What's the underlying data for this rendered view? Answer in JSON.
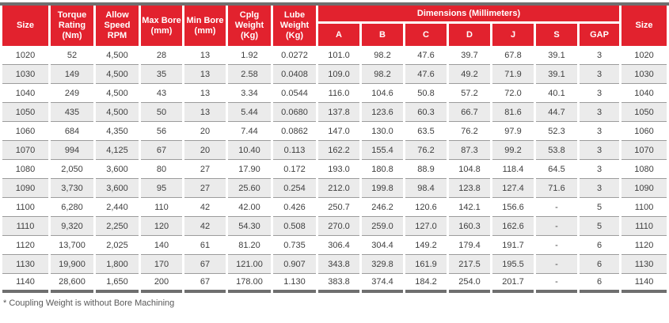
{
  "table": {
    "group_header": "Dimensions (Millimeters)",
    "columns_left": [
      "Size",
      "Torque Rating (Nm)",
      "Allow Speed RPM",
      "Max Bore (mm)",
      "Min Bore (mm)",
      "Cplg Weight (Kg)",
      "Lube Weight (Kg)"
    ],
    "dimension_columns": [
      "A",
      "B",
      "C",
      "D",
      "J",
      "S",
      "GAP"
    ],
    "column_right": "Size",
    "rows": [
      [
        "1020",
        "52",
        "4,500",
        "28",
        "13",
        "1.92",
        "0.0272",
        "101.0",
        "98.2",
        "47.6",
        "39.7",
        "67.8",
        "39.1",
        "3",
        "1020"
      ],
      [
        "1030",
        "149",
        "4,500",
        "35",
        "13",
        "2.58",
        "0.0408",
        "109.0",
        "98.2",
        "47.6",
        "49.2",
        "71.9",
        "39.1",
        "3",
        "1030"
      ],
      [
        "1040",
        "249",
        "4,500",
        "43",
        "13",
        "3.34",
        "0.0544",
        "116.0",
        "104.6",
        "50.8",
        "57.2",
        "72.0",
        "40.1",
        "3",
        "1040"
      ],
      [
        "1050",
        "435",
        "4,500",
        "50",
        "13",
        "5.44",
        "0.0680",
        "137.8",
        "123.6",
        "60.3",
        "66.7",
        "81.6",
        "44.7",
        "3",
        "1050"
      ],
      [
        "1060",
        "684",
        "4,350",
        "56",
        "20",
        "7.44",
        "0.0862",
        "147.0",
        "130.0",
        "63.5",
        "76.2",
        "97.9",
        "52.3",
        "3",
        "1060"
      ],
      [
        "1070",
        "994",
        "4,125",
        "67",
        "20",
        "10.40",
        "0.113",
        "162.2",
        "155.4",
        "76.2",
        "87.3",
        "99.2",
        "53.8",
        "3",
        "1070"
      ],
      [
        "1080",
        "2,050",
        "3,600",
        "80",
        "27",
        "17.90",
        "0.172",
        "193.0",
        "180.8",
        "88.9",
        "104.8",
        "118.4",
        "64.5",
        "3",
        "1080"
      ],
      [
        "1090",
        "3,730",
        "3,600",
        "95",
        "27",
        "25.60",
        "0.254",
        "212.0",
        "199.8",
        "98.4",
        "123.8",
        "127.4",
        "71.6",
        "3",
        "1090"
      ],
      [
        "1100",
        "6,280",
        "2,440",
        "110",
        "42",
        "42.00",
        "0.426",
        "250.7",
        "246.2",
        "120.6",
        "142.1",
        "156.6",
        "-",
        "5",
        "1100"
      ],
      [
        "1110",
        "9,320",
        "2,250",
        "120",
        "42",
        "54.30",
        "0.508",
        "270.0",
        "259.0",
        "127.0",
        "160.3",
        "162.6",
        "-",
        "5",
        "1110"
      ],
      [
        "1120",
        "13,700",
        "2,025",
        "140",
        "61",
        "81.20",
        "0.735",
        "306.4",
        "304.4",
        "149.2",
        "179.4",
        "191.7",
        "-",
        "6",
        "1120"
      ],
      [
        "1130",
        "19,900",
        "1,800",
        "170",
        "67",
        "121.00",
        "0.907",
        "343.8",
        "329.8",
        "161.9",
        "217.5",
        "195.5",
        "-",
        "6",
        "1130"
      ],
      [
        "1140",
        "28,600",
        "1,650",
        "200",
        "67",
        "178.00",
        "1.130",
        "383.8",
        "374.4",
        "184.2",
        "254.0",
        "201.7",
        "-",
        "6",
        "1140"
      ]
    ]
  },
  "footnote": "* Coupling Weight is without Bore Machining",
  "colors": {
    "header_red": "#e2222e",
    "bar_gray": "#6f6f6f",
    "row_alt_gray": "#ebebeb",
    "row_line_gray": "#9c9c9c"
  }
}
